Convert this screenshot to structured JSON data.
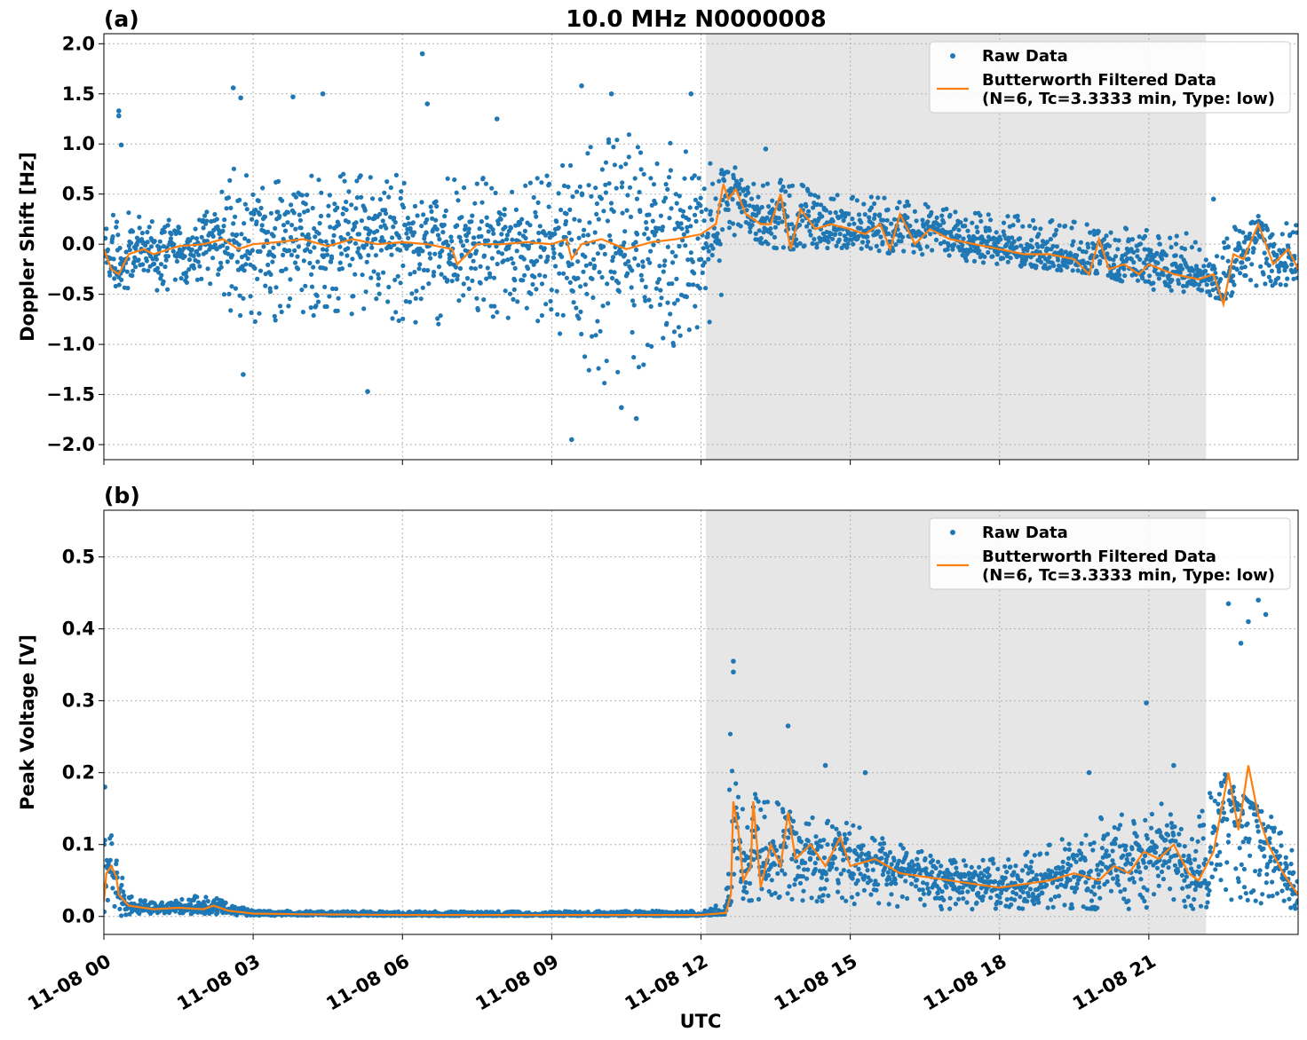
{
  "figure": {
    "title": "10.0 MHz N0000008",
    "xlabel": "UTC",
    "xtick_labels": [
      "11-08 00",
      "11-08 03",
      "11-08 06",
      "11-08 09",
      "11-08 12",
      "11-08 15",
      "11-08 18",
      "11-08 21"
    ]
  },
  "colors": {
    "raw": "#1f77b4",
    "filtered": "#ff7f0e",
    "shade": "#e6e6e6"
  },
  "chart_data": [
    {
      "type": "scatter",
      "panel_label": "(a)",
      "title": "10.0 MHz N0000008",
      "xlabel": "",
      "ylabel": "Doppler Shift [Hz]",
      "x_unit": "hours UTC on 11-08",
      "xlim": [
        0,
        24
      ],
      "ylim": [
        -2.15,
        2.1
      ],
      "yticks": [
        -2.0,
        -1.5,
        -1.0,
        -0.5,
        0.0,
        0.5,
        1.0,
        1.5,
        2.0
      ],
      "ytick_labels": [
        "−2.0",
        "−1.5",
        "−1.0",
        "−0.5",
        "0.0",
        "0.5",
        "1.0",
        "1.5",
        "2.0"
      ],
      "grid": true,
      "legend_position": "top-right",
      "shaded_interval": [
        12.1,
        22.15
      ],
      "series": [
        {
          "name": "Raw Data",
          "style": "points",
          "envelope_x": [
            0,
            0.3,
            1,
            2,
            2.3,
            2.6,
            3,
            4,
            5,
            6,
            7,
            8,
            9,
            9.3,
            9.5,
            10,
            10.5,
            11,
            11.5,
            12,
            12.3,
            12.6,
            12.8,
            13,
            13.5,
            14,
            15,
            16,
            17,
            18,
            19,
            20,
            21,
            22,
            22.5,
            23,
            24
          ],
          "envelope_low": [
            -0.3,
            -0.45,
            -0.5,
            -0.35,
            -0.55,
            -0.7,
            -0.8,
            -0.75,
            -0.75,
            -0.8,
            -0.8,
            -0.8,
            -0.8,
            -1.0,
            -1.3,
            -1.4,
            -1.4,
            -1.3,
            -1.0,
            -0.9,
            -0.7,
            -0.5,
            0.0,
            0.05,
            -0.05,
            -0.05,
            -0.05,
            -0.1,
            -0.15,
            -0.2,
            -0.25,
            -0.3,
            -0.45,
            -0.5,
            -0.55,
            -0.45,
            -0.4
          ],
          "envelope_high": [
            0.2,
            0.35,
            0.25,
            0.3,
            0.6,
            0.8,
            0.7,
            0.7,
            0.7,
            0.7,
            0.7,
            0.7,
            0.75,
            0.8,
            1.0,
            1.2,
            1.2,
            1.1,
            1.0,
            0.9,
            0.8,
            0.7,
            0.85,
            0.6,
            0.65,
            0.6,
            0.5,
            0.45,
            0.35,
            0.3,
            0.25,
            0.2,
            0.15,
            0.1,
            0.2,
            0.3,
            0.2
          ],
          "outliers": [
            [
              0.3,
              1.33
            ],
            [
              0.3,
              1.28
            ],
            [
              0.35,
              0.99
            ],
            [
              2.6,
              1.56
            ],
            [
              2.75,
              1.46
            ],
            [
              3.8,
              1.47
            ],
            [
              4.4,
              1.5
            ],
            [
              6.4,
              1.9
            ],
            [
              6.5,
              1.4
            ],
            [
              7.9,
              1.25
            ],
            [
              9.6,
              1.58
            ],
            [
              9.4,
              -1.95
            ],
            [
              10.7,
              -1.74
            ],
            [
              10.4,
              -1.63
            ],
            [
              10.2,
              1.5
            ],
            [
              11.8,
              1.5
            ],
            [
              13.3,
              0.95
            ],
            [
              5.3,
              -1.47
            ],
            [
              2.8,
              -1.3
            ],
            [
              22.3,
              0.45
            ]
          ]
        },
        {
          "name": "Butterworth Filtered Data\n(N=6, Tc=3.3333 min, Type: low)",
          "style": "line",
          "x": [
            0,
            0.15,
            0.3,
            0.5,
            0.8,
            1,
            1.5,
            2,
            2.4,
            2.7,
            3,
            3.5,
            4,
            4.5,
            5,
            5.5,
            6,
            6.5,
            7,
            7.1,
            7.5,
            8,
            8.5,
            9,
            9.3,
            9.4,
            9.6,
            10,
            10.5,
            11,
            11.5,
            12,
            12.3,
            12.45,
            12.55,
            12.7,
            12.9,
            13.2,
            13.4,
            13.6,
            13.8,
            14,
            14.3,
            14.6,
            15,
            15.3,
            15.6,
            15.8,
            16,
            16.3,
            16.6,
            17,
            17.5,
            18,
            18.5,
            19,
            19.5,
            19.8,
            20,
            20.2,
            20.5,
            20.8,
            21,
            21.5,
            22,
            22.3,
            22.5,
            22.7,
            22.9,
            23.2,
            23.5,
            23.8,
            24
          ],
          "y": [
            -0.05,
            -0.25,
            -0.3,
            -0.1,
            -0.05,
            -0.1,
            -0.02,
            0.0,
            0.05,
            -0.05,
            0.0,
            0.02,
            0.05,
            -0.02,
            0.05,
            0.0,
            0.02,
            0.0,
            -0.05,
            -0.2,
            0.0,
            0.0,
            0.02,
            0.0,
            0.05,
            -0.15,
            0.0,
            0.05,
            -0.05,
            0.02,
            0.05,
            0.1,
            0.2,
            0.6,
            0.45,
            0.55,
            0.3,
            0.2,
            0.2,
            0.5,
            -0.05,
            0.35,
            0.15,
            0.2,
            0.15,
            0.1,
            0.2,
            -0.05,
            0.3,
            0.0,
            0.15,
            0.05,
            0.0,
            -0.05,
            -0.1,
            -0.1,
            -0.15,
            -0.3,
            0.05,
            -0.25,
            -0.2,
            -0.3,
            -0.2,
            -0.3,
            -0.35,
            -0.3,
            -0.6,
            -0.1,
            -0.15,
            0.2,
            -0.2,
            -0.05,
            -0.25
          ]
        }
      ]
    },
    {
      "type": "scatter",
      "panel_label": "(b)",
      "title": "",
      "xlabel": "UTC",
      "ylabel": "Peak Voltage [V]",
      "x_unit": "hours UTC on 11-08",
      "xlim": [
        0,
        24
      ],
      "ylim": [
        -0.025,
        0.565
      ],
      "yticks": [
        0.0,
        0.1,
        0.2,
        0.3,
        0.4,
        0.5
      ],
      "ytick_labels": [
        "0.0",
        "0.1",
        "0.2",
        "0.3",
        "0.4",
        "0.5"
      ],
      "grid": true,
      "legend_position": "top-right",
      "shaded_interval": [
        12.1,
        22.15
      ],
      "series": [
        {
          "name": "Raw Data",
          "style": "points",
          "envelope_x": [
            0,
            0.15,
            0.3,
            0.5,
            1,
            2,
            2.3,
            3,
            6,
            9,
            12,
            12.5,
            12.6,
            12.7,
            12.8,
            13,
            13.5,
            14,
            15,
            16,
            17,
            18,
            19,
            20,
            21,
            22,
            22.5,
            23,
            24
          ],
          "envelope_low": [
            0.0,
            0.01,
            0.0,
            0.003,
            0.003,
            0.003,
            0.002,
            0.001,
            0.001,
            0.001,
            0.001,
            0.003,
            0.02,
            0.04,
            0.02,
            0.02,
            0.02,
            0.02,
            0.015,
            0.01,
            0.01,
            0.01,
            0.01,
            0.01,
            0.01,
            0.01,
            0.015,
            0.02,
            0.01
          ],
          "envelope_high": [
            0.12,
            0.13,
            0.1,
            0.03,
            0.02,
            0.03,
            0.025,
            0.008,
            0.007,
            0.007,
            0.008,
            0.02,
            0.3,
            0.2,
            0.15,
            0.18,
            0.16,
            0.15,
            0.13,
            0.1,
            0.08,
            0.08,
            0.1,
            0.14,
            0.15,
            0.18,
            0.2,
            0.16,
            0.12
          ],
          "outliers": [
            [
              0.02,
              0.18
            ],
            [
              12.65,
              0.355
            ],
            [
              12.65,
              0.34
            ],
            [
              13.75,
              0.265
            ],
            [
              20.95,
              0.297
            ],
            [
              22.6,
              0.435
            ],
            [
              23.2,
              0.44
            ],
            [
              23.0,
              0.41
            ],
            [
              22.85,
              0.38
            ],
            [
              23.35,
              0.42
            ],
            [
              14.5,
              0.21
            ],
            [
              15.3,
              0.2
            ],
            [
              19.8,
              0.2
            ],
            [
              21.5,
              0.21
            ]
          ]
        },
        {
          "name": "Butterworth Filtered Data\n(N=6, Tc=3.3333 min, Type: low)",
          "style": "line",
          "x": [
            0,
            0.05,
            0.15,
            0.25,
            0.3,
            0.5,
            1,
            1.5,
            2,
            2.2,
            2.5,
            3,
            4,
            6,
            9,
            12,
            12.5,
            12.6,
            12.65,
            12.75,
            12.85,
            13,
            13.05,
            13.2,
            13.4,
            13.6,
            13.75,
            13.9,
            14.2,
            14.5,
            14.8,
            15,
            15.5,
            16,
            16.5,
            17,
            17.5,
            18,
            18.5,
            19,
            19.5,
            20,
            20.3,
            20.6,
            20.9,
            21.2,
            21.5,
            21.8,
            22,
            22.3,
            22.6,
            22.8,
            23.0,
            23.2,
            23.4,
            23.7,
            24
          ],
          "y": [
            0.02,
            0.06,
            0.07,
            0.055,
            0.03,
            0.015,
            0.01,
            0.012,
            0.01,
            0.015,
            0.008,
            0.004,
            0.003,
            0.002,
            0.002,
            0.002,
            0.005,
            0.03,
            0.16,
            0.12,
            0.05,
            0.07,
            0.16,
            0.04,
            0.1,
            0.07,
            0.145,
            0.08,
            0.1,
            0.07,
            0.11,
            0.07,
            0.08,
            0.06,
            0.055,
            0.05,
            0.045,
            0.04,
            0.045,
            0.05,
            0.06,
            0.05,
            0.07,
            0.06,
            0.09,
            0.08,
            0.1,
            0.06,
            0.05,
            0.09,
            0.2,
            0.12,
            0.21,
            0.14,
            0.1,
            0.06,
            0.03
          ]
        }
      ]
    }
  ]
}
